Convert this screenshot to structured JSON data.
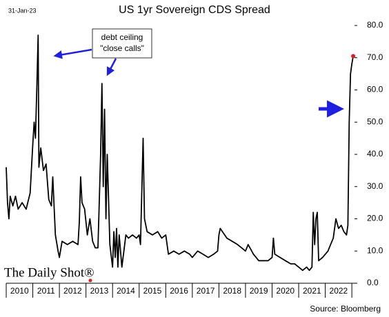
{
  "chart_data": {
    "type": "line",
    "title": "US 1yr Sovereign CDS Spread",
    "date_label": "31-Jan-23",
    "source": "Source: Bloomberg",
    "logo": "The Daily Shot®",
    "annotation": [
      "debt ceiling",
      "\"close calls\""
    ],
    "xlim": [
      2010,
      2023.1
    ],
    "xticks": [
      {
        "value": 2010.5,
        "label": "2010"
      },
      {
        "value": 2011.5,
        "label": "2011"
      },
      {
        "value": 2012.5,
        "label": "2012"
      },
      {
        "value": 2013.5,
        "label": "2013"
      },
      {
        "value": 2014.5,
        "label": "2014"
      },
      {
        "value": 2015.5,
        "label": "2015"
      },
      {
        "value": 2016.5,
        "label": "2016"
      },
      {
        "value": 2017.5,
        "label": "2017"
      },
      {
        "value": 2018.5,
        "label": "2018"
      },
      {
        "value": 2019.5,
        "label": "2019"
      },
      {
        "value": 2020.5,
        "label": "2020"
      },
      {
        "value": 2021.5,
        "label": "2021"
      },
      {
        "value": 2022.5,
        "label": "2022"
      }
    ],
    "ylim": [
      0,
      80
    ],
    "yticks": [
      {
        "value": 0,
        "label": "0.0"
      },
      {
        "value": 10,
        "label": "10.0"
      },
      {
        "value": 20,
        "label": "20.0"
      },
      {
        "value": 30,
        "label": "30.0"
      },
      {
        "value": 40,
        "label": "40.0"
      },
      {
        "value": 50,
        "label": "50.0"
      },
      {
        "value": 60,
        "label": "60.0"
      },
      {
        "value": 70,
        "label": "70.0"
      },
      {
        "value": 80,
        "label": "80.0"
      }
    ],
    "y_axis_side": "right",
    "end_marker_color": "#e31a1c",
    "series": [
      {
        "name": "US 1yr CDS",
        "color": "#000000",
        "x": [
          2010.0,
          2010.05,
          2010.1,
          2010.15,
          2010.25,
          2010.35,
          2010.45,
          2010.6,
          2010.75,
          2010.9,
          2011.0,
          2011.05,
          2011.1,
          2011.15,
          2011.2,
          2011.23,
          2011.3,
          2011.4,
          2011.5,
          2011.6,
          2011.7,
          2011.75,
          2011.85,
          2011.95,
          2012.0,
          2012.1,
          2012.3,
          2012.5,
          2012.7,
          2012.75,
          2012.8,
          2012.85,
          2012.95,
          2013.05,
          2013.15,
          2013.25,
          2013.35,
          2013.45,
          2013.55,
          2013.6,
          2013.65,
          2013.7,
          2013.75,
          2013.8,
          2013.9,
          2014.0,
          2014.05,
          2014.1,
          2014.15,
          2014.2,
          2014.25,
          2014.35,
          2014.5,
          2014.6,
          2014.75,
          2014.9,
          2015.0,
          2015.05,
          2015.15,
          2015.2,
          2015.3,
          2015.5,
          2015.7,
          2015.85,
          2016.0,
          2016.1,
          2016.3,
          2016.5,
          2016.7,
          2016.9,
          2017.0,
          2017.2,
          2017.4,
          2017.6,
          2017.8,
          2017.95,
          2018.0,
          2018.05,
          2018.3,
          2018.5,
          2018.7,
          2018.85,
          2019.0,
          2019.1,
          2019.3,
          2019.5,
          2019.7,
          2019.85,
          2020.0,
          2020.05,
          2020.1,
          2020.3,
          2020.5,
          2020.7,
          2020.85,
          2021.0,
          2021.15,
          2021.3,
          2021.4,
          2021.5,
          2021.55,
          2021.6,
          2021.65,
          2021.7,
          2021.75,
          2021.9,
          2022.0,
          2022.1,
          2022.2,
          2022.3,
          2022.4,
          2022.5,
          2022.6,
          2022.7,
          2022.8,
          2022.85,
          2022.9,
          2022.95,
          2023.0,
          2023.05
        ],
        "values": [
          36,
          25,
          20,
          27,
          24,
          27,
          23,
          25,
          23,
          28,
          43,
          50,
          45,
          60,
          77,
          36,
          42,
          35,
          37,
          26,
          24,
          33,
          15,
          10,
          8,
          13,
          12,
          13,
          12,
          19,
          33,
          25,
          23,
          15,
          20,
          13,
          11,
          11,
          40,
          62,
          30,
          54,
          20,
          40,
          12,
          5,
          16,
          8,
          17,
          5,
          15,
          5,
          15,
          14,
          15,
          14,
          15,
          12,
          45,
          20,
          16,
          15,
          16,
          14,
          15,
          9,
          10,
          9,
          10,
          9,
          8,
          10,
          9,
          8,
          9,
          10,
          15,
          17,
          14,
          13,
          12,
          11,
          10,
          12,
          9,
          7,
          7,
          7,
          8,
          14,
          9,
          8,
          7,
          6,
          6,
          5,
          4,
          5,
          4,
          5,
          22,
          12,
          20,
          22,
          7,
          8,
          9,
          10,
          12,
          14,
          20,
          17,
          18,
          16,
          15,
          18,
          50,
          65,
          68,
          70.5
        ]
      }
    ]
  }
}
